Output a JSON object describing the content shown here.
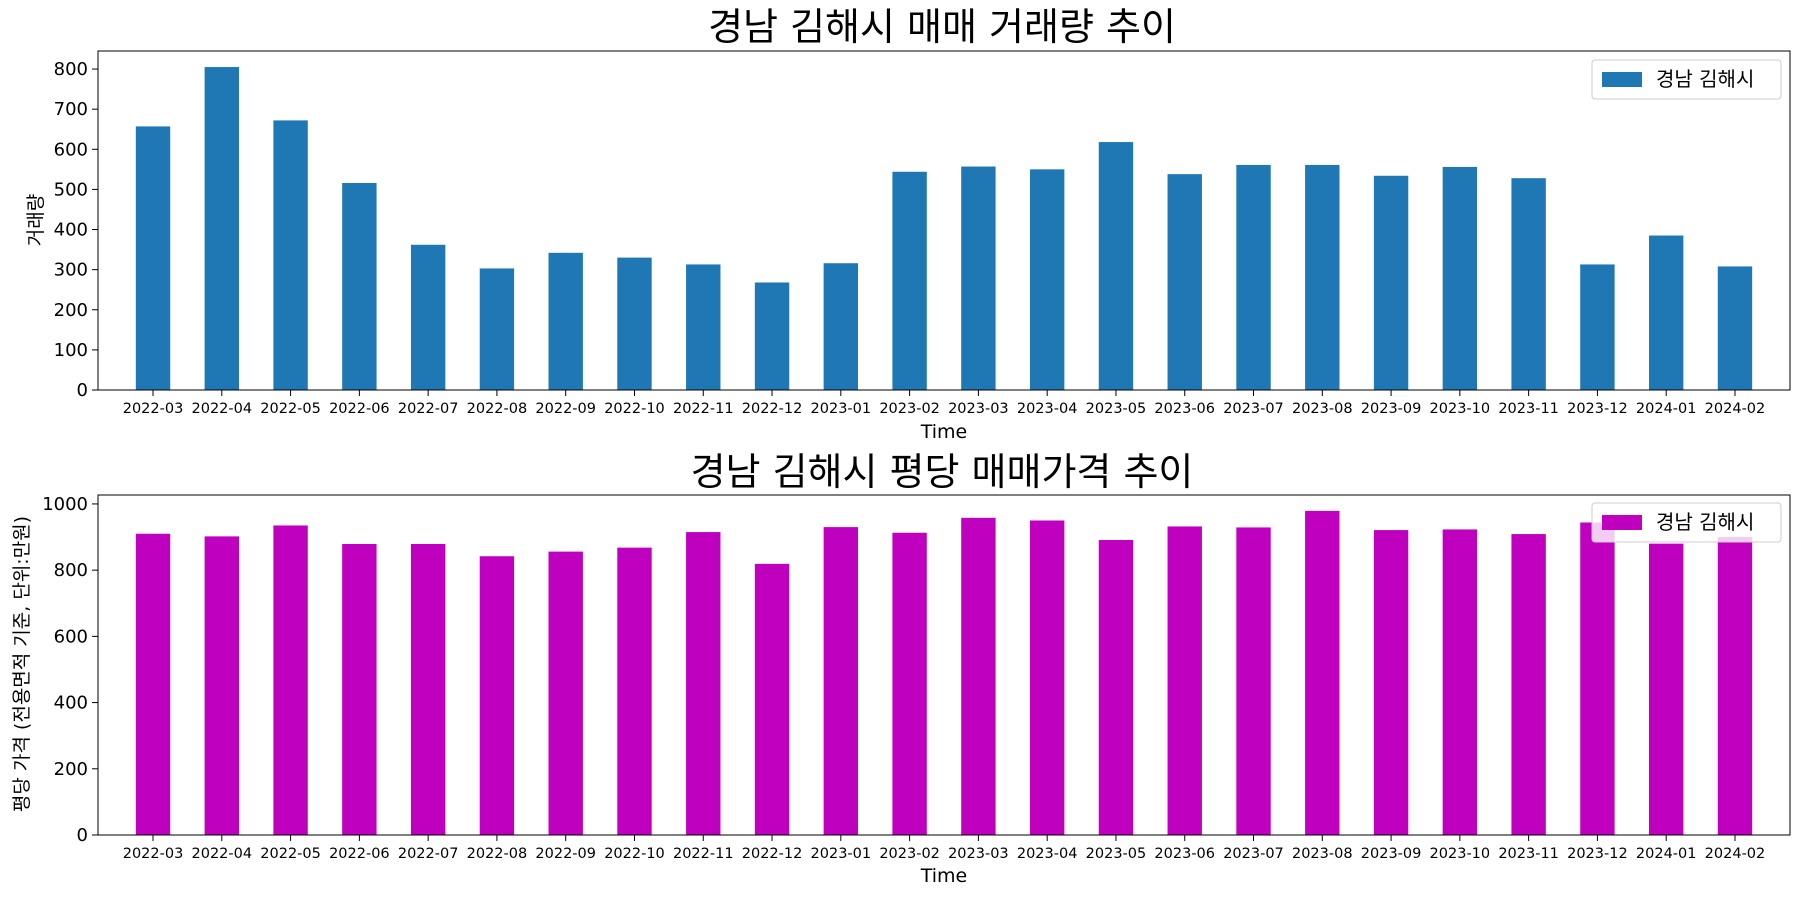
{
  "chart_data": [
    {
      "type": "bar",
      "title": "경남 김해시 매매 거래량 추이",
      "xlabel": "Time",
      "ylabel": "거래량",
      "categories": [
        "2022-03",
        "2022-04",
        "2022-05",
        "2022-06",
        "2022-07",
        "2022-08",
        "2022-09",
        "2022-10",
        "2022-11",
        "2022-12",
        "2023-01",
        "2023-02",
        "2023-03",
        "2023-04",
        "2023-05",
        "2023-06",
        "2023-07",
        "2023-08",
        "2023-09",
        "2023-10",
        "2023-11",
        "2023-12",
        "2024-01",
        "2024-02"
      ],
      "series": [
        {
          "name": "경남 김해시",
          "color": "#1f77b4",
          "values": [
            657,
            805,
            672,
            516,
            362,
            303,
            342,
            330,
            313,
            268,
            316,
            544,
            557,
            550,
            618,
            538,
            561,
            561,
            534,
            556,
            528,
            313,
            385,
            308
          ]
        }
      ],
      "ylim": [
        0,
        845
      ],
      "yticks": [
        0,
        100,
        200,
        300,
        400,
        500,
        600,
        700,
        800
      ],
      "legend": "upper right",
      "grid": false
    },
    {
      "type": "bar",
      "title": "경남 김해시 평당 매매가격 추이",
      "xlabel": "Time",
      "ylabel": "평당 가격 (전용면적 기준, 단위:만원)",
      "categories": [
        "2022-03",
        "2022-04",
        "2022-05",
        "2022-06",
        "2022-07",
        "2022-08",
        "2022-09",
        "2022-10",
        "2022-11",
        "2022-12",
        "2023-01",
        "2023-02",
        "2023-03",
        "2023-04",
        "2023-05",
        "2023-06",
        "2023-07",
        "2023-08",
        "2023-09",
        "2023-10",
        "2023-11",
        "2023-12",
        "2024-01",
        "2024-02"
      ],
      "series": [
        {
          "name": "경남 김해시",
          "color": "#bf00bf",
          "values": [
            910,
            902,
            935,
            879,
            879,
            842,
            856,
            868,
            915,
            819,
            930,
            913,
            958,
            950,
            891,
            932,
            929,
            979,
            921,
            923,
            909,
            944,
            880,
            900
          ]
        }
      ],
      "ylim": [
        0,
        1027
      ],
      "yticks": [
        0,
        200,
        400,
        600,
        800,
        1000
      ],
      "legend": "upper right",
      "grid": false
    }
  ]
}
